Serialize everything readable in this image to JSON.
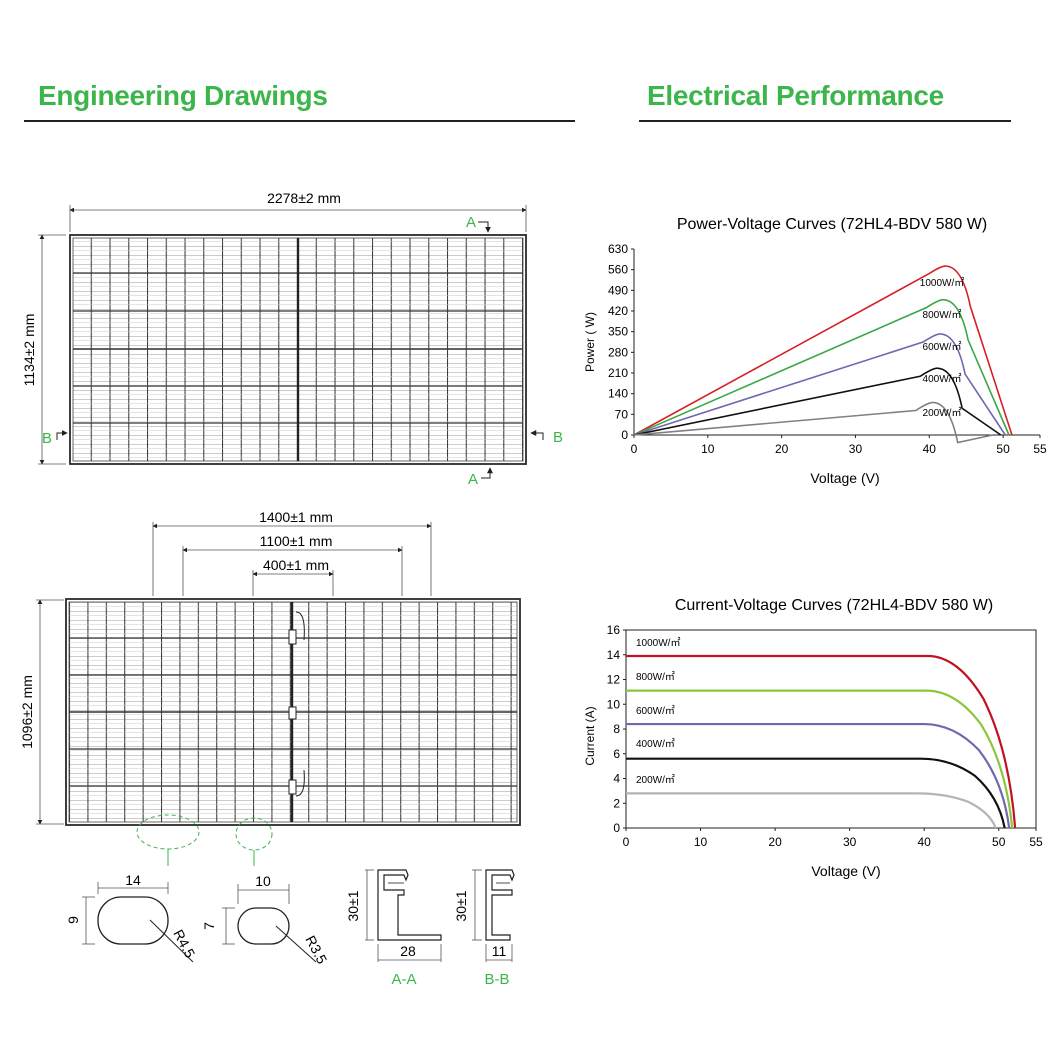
{
  "headers": {
    "left_title": "Engineering Drawings",
    "right_title": "Electrical Performance"
  },
  "colors": {
    "accent": "#3cb54a",
    "red": "#d62027",
    "green": "#3aa846",
    "purple": "#6f68ae",
    "black": "#111111",
    "gray": "#808080",
    "light_green": "#8cc63f",
    "light_gray": "#b4b4b4",
    "dark_red": "#c1121f"
  },
  "front_view": {
    "width_dim": "2278±2 mm",
    "height_dim": "1134±2 mm",
    "section_a": "A",
    "section_b": "B"
  },
  "back_view": {
    "dim_1400": "1400±1 mm",
    "dim_1100": "1100±1 mm",
    "dim_400": "400±1 mm",
    "height_dim": "1096±2 mm"
  },
  "details": {
    "hole_large": {
      "width": "14",
      "height": "9",
      "radius": "R4.5"
    },
    "hole_small": {
      "width": "10",
      "height": "7",
      "radius": "R3.5"
    },
    "section_aa": {
      "height": "30±1",
      "width": "28",
      "label": "A-A"
    },
    "section_bb": {
      "height": "30±1",
      "width": "11",
      "label": "B-B"
    }
  },
  "chart_data": [
    {
      "type": "line",
      "title": "Power-Voltage Curves (72HL4-BDV 580 W)",
      "xlabel": "Voltage (V)",
      "ylabel": "Power ( W)",
      "xlim": [
        0,
        55
      ],
      "ylim": [
        0,
        630
      ],
      "xticks": [
        0,
        10,
        20,
        30,
        40,
        50,
        55
      ],
      "yticks": [
        0,
        70,
        140,
        210,
        280,
        350,
        420,
        490,
        560,
        630
      ],
      "series": [
        {
          "name": "1000W/㎡",
          "color": "#d62027",
          "points": [
            [
              0,
              0
            ],
            [
              42.3,
              572
            ],
            [
              51.2,
              0
            ]
          ]
        },
        {
          "name": "800W/㎡",
          "color": "#3aa846",
          "points": [
            [
              0,
              0
            ],
            [
              42.0,
              458
            ],
            [
              50.8,
              0
            ]
          ]
        },
        {
          "name": "600W/㎡",
          "color": "#6f68ae",
          "points": [
            [
              0,
              0
            ],
            [
              41.6,
              342
            ],
            [
              50.3,
              0
            ]
          ]
        },
        {
          "name": "400W/㎡",
          "color": "#111111",
          "points": [
            [
              0,
              0
            ],
            [
              41.2,
              226
            ],
            [
              49.7,
              0
            ]
          ]
        },
        {
          "name": "200W/㎡",
          "color": "#808080",
          "points": [
            [
              0,
              0
            ],
            [
              40.6,
              110
            ],
            [
              48.6,
              0
            ]
          ]
        }
      ]
    },
    {
      "type": "line",
      "title": "Current-Voltage Curves (72HL4-BDV 580 W)",
      "xlabel": "Voltage (V)",
      "ylabel": "Current (A)",
      "xlim": [
        0,
        55
      ],
      "ylim": [
        0,
        16
      ],
      "xticks": [
        0,
        10,
        20,
        30,
        40,
        50,
        55
      ],
      "yticks": [
        0,
        2,
        4,
        6,
        8,
        10,
        12,
        14,
        16
      ],
      "series": [
        {
          "name": "1000W/㎡",
          "color": "#c1121f",
          "isc": 13.9,
          "knee": 44.5,
          "voc": 52.2
        },
        {
          "name": "800W/㎡",
          "color": "#8cc63f",
          "isc": 11.1,
          "knee": 44.3,
          "voc": 51.8
        },
        {
          "name": "600W/㎡",
          "color": "#6f68ae",
          "isc": 8.4,
          "knee": 44.0,
          "voc": 51.4
        },
        {
          "name": "400W/㎡",
          "color": "#111111",
          "isc": 5.6,
          "knee": 43.6,
          "voc": 50.8
        },
        {
          "name": "200W/㎡",
          "color": "#b4b4b4",
          "isc": 2.8,
          "knee": 43.0,
          "voc": 49.6
        }
      ]
    }
  ]
}
